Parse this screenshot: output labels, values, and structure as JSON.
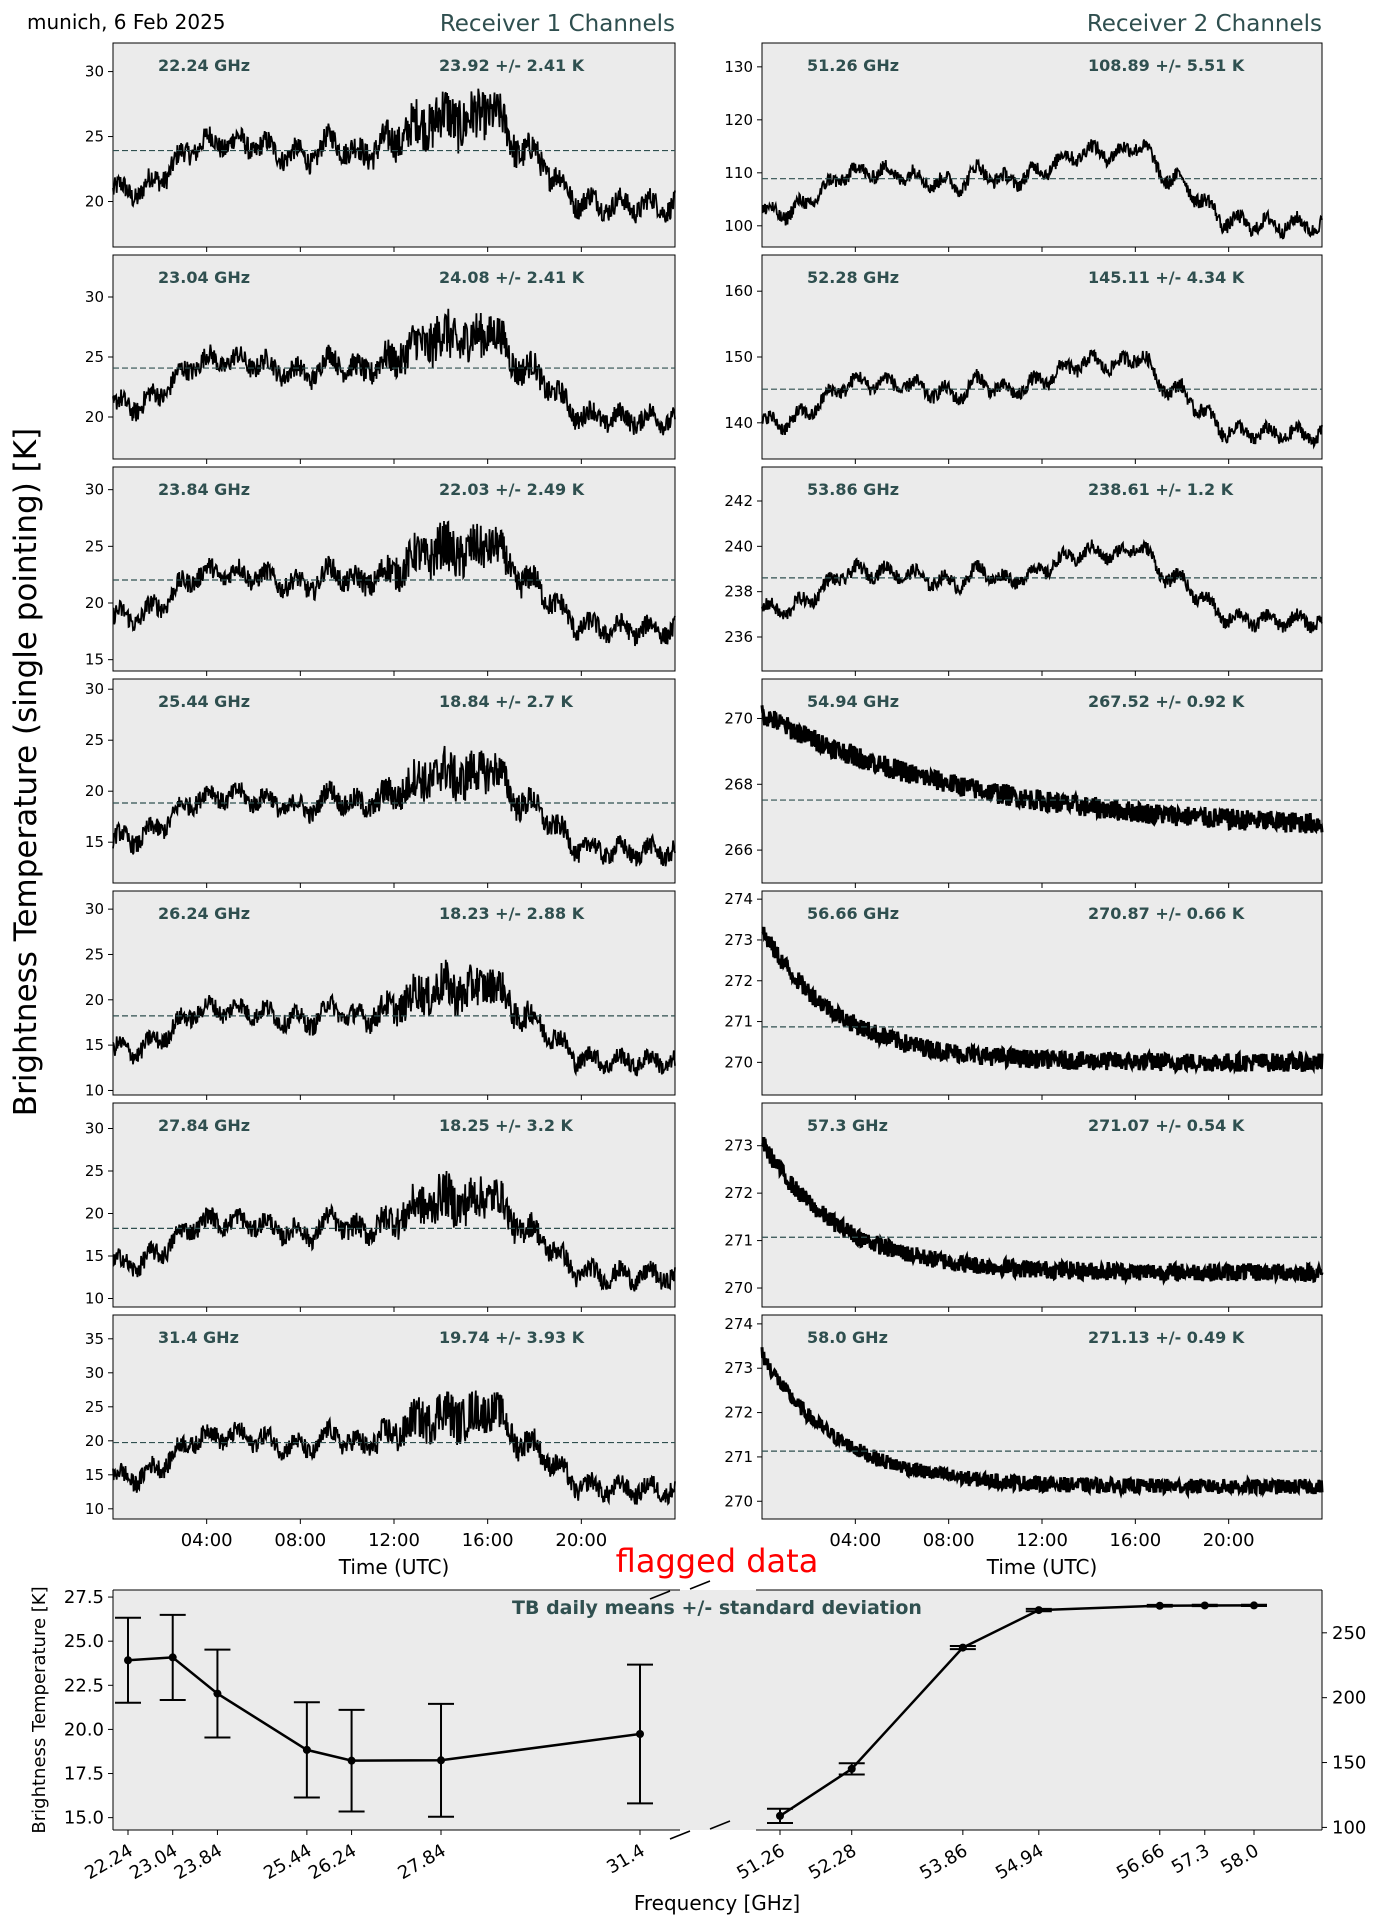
{
  "title": "munich, 6 Feb 2025",
  "column_titles": [
    "Receiver 1 Channels",
    "Receiver 2 Channels"
  ],
  "ylabel_main": "Brightness Temperature (single pointing) [K]",
  "colors": {
    "panel_bg": "#ebebeb",
    "series": "#000000",
    "annotation": "#2f4f4f",
    "flag": "#ff0000"
  },
  "chart_data": [
    {
      "type": "line",
      "receiver": 1,
      "xlabel": "Time (UTC)",
      "x_tick_labels": [
        "04:00",
        "08:00",
        "12:00",
        "16:00",
        "20:00"
      ],
      "xlim_hours": [
        0,
        24
      ],
      "panels": [
        {
          "freq_label": "22.24 GHz",
          "stat_label": "23.92 +/- 2.41 K",
          "mean": 23.92,
          "std": 2.41,
          "ylim": [
            16.5,
            32.2
          ],
          "yticks": [
            20,
            25,
            30
          ]
        },
        {
          "freq_label": "23.04 GHz",
          "stat_label": "24.08 +/- 2.41 K",
          "mean": 24.08,
          "std": 2.41,
          "ylim": [
            16.5,
            33.5
          ],
          "yticks": [
            20,
            25,
            30
          ]
        },
        {
          "freq_label": "23.84 GHz",
          "stat_label": "22.03 +/- 2.49 K",
          "mean": 22.03,
          "std": 2.49,
          "ylim": [
            14.0,
            32.0
          ],
          "yticks": [
            15,
            20,
            25,
            30
          ]
        },
        {
          "freq_label": "25.44 GHz",
          "stat_label": "18.84 +/- 2.7 K",
          "mean": 18.84,
          "std": 2.7,
          "ylim": [
            11.0,
            31.0
          ],
          "yticks": [
            15,
            20,
            25,
            30
          ]
        },
        {
          "freq_label": "26.24 GHz",
          "stat_label": "18.23 +/- 2.88 K",
          "mean": 18.23,
          "std": 2.88,
          "ylim": [
            9.5,
            32.0
          ],
          "yticks": [
            10,
            15,
            20,
            25,
            30
          ]
        },
        {
          "freq_label": "27.84 GHz",
          "stat_label": "18.25 +/- 3.2 K",
          "mean": 18.25,
          "std": 3.2,
          "ylim": [
            9.0,
            33.0
          ],
          "yticks": [
            10,
            15,
            20,
            25,
            30
          ]
        },
        {
          "freq_label": "31.4 GHz",
          "stat_label": "19.74 +/- 3.93 K",
          "mean": 19.74,
          "std": 3.93,
          "ylim": [
            8.5,
            38.5
          ],
          "yticks": [
            10,
            15,
            20,
            25,
            30,
            35
          ]
        }
      ]
    },
    {
      "type": "line",
      "receiver": 2,
      "xlabel": "Time (UTC)",
      "x_tick_labels": [
        "04:00",
        "08:00",
        "12:00",
        "16:00",
        "20:00"
      ],
      "xlim_hours": [
        0,
        24
      ],
      "panels": [
        {
          "freq_label": "51.26 GHz",
          "stat_label": "108.89 +/- 5.51 K",
          "mean": 108.89,
          "std": 5.51,
          "ylim": [
            96.0,
            134.5
          ],
          "yticks": [
            100,
            110,
            120,
            130
          ]
        },
        {
          "freq_label": "52.28 GHz",
          "stat_label": "145.11 +/- 4.34 K",
          "mean": 145.11,
          "std": 4.34,
          "ylim": [
            134.5,
            165.5
          ],
          "yticks": [
            140,
            150,
            160
          ]
        },
        {
          "freq_label": "53.86 GHz",
          "stat_label": "238.61 +/- 1.2 K",
          "mean": 238.61,
          "std": 1.2,
          "ylim": [
            234.5,
            243.5
          ],
          "yticks": [
            236,
            238,
            240,
            242
          ]
        },
        {
          "freq_label": "54.94 GHz",
          "stat_label": "267.52 +/- 0.92 K",
          "mean": 267.52,
          "std": 0.92,
          "ylim": [
            265.0,
            271.2
          ],
          "yticks": [
            266,
            268,
            270
          ]
        },
        {
          "freq_label": "56.66 GHz",
          "stat_label": "270.87 +/- 0.66 K",
          "mean": 270.87,
          "std": 0.66,
          "ylim": [
            269.2,
            274.2
          ],
          "yticks": [
            270,
            271,
            272,
            273,
            274
          ]
        },
        {
          "freq_label": "57.3 GHz",
          "stat_label": "271.07 +/- 0.54 K",
          "mean": 271.07,
          "std": 0.54,
          "ylim": [
            269.6,
            273.9
          ],
          "yticks": [
            270,
            271,
            272,
            273
          ]
        },
        {
          "freq_label": "58.0 GHz",
          "stat_label": "271.13 +/- 0.49 K",
          "mean": 271.13,
          "std": 0.49,
          "ylim": [
            269.6,
            274.2
          ],
          "yticks": [
            270,
            271,
            272,
            273,
            274
          ]
        }
      ]
    },
    {
      "type": "line",
      "title": "TB daily means +/- standard deviation",
      "xlabel": "Frequency [GHz]",
      "ylabel": "Brightness Temperature [K]",
      "flag_label": "flagged data",
      "left_axis": {
        "ylim": [
          14.3,
          27.9
        ],
        "yticks": [
          15.0,
          17.5,
          20.0,
          22.5,
          25.0,
          27.5
        ],
        "ytick_labels": [
          "15.0",
          "17.5",
          "20.0",
          "22.5",
          "25.0",
          "27.5"
        ]
      },
      "right_axis": {
        "ylim": [
          98,
          283
        ],
        "yticks": [
          100,
          150,
          200,
          250
        ],
        "ytick_labels": [
          "100",
          "150",
          "200",
          "250"
        ]
      },
      "series": [
        {
          "x_labels": [
            "22.24",
            "23.04",
            "23.84",
            "25.44",
            "26.24",
            "27.84",
            "31.4"
          ],
          "x": [
            22.24,
            23.04,
            23.84,
            25.44,
            26.24,
            27.84,
            31.4
          ],
          "y": [
            23.92,
            24.08,
            22.03,
            18.84,
            18.23,
            18.25,
            19.74
          ],
          "err": [
            2.41,
            2.41,
            2.49,
            2.7,
            2.88,
            3.2,
            3.93
          ]
        },
        {
          "x_labels": [
            "51.26",
            "52.28",
            "53.86",
            "54.94",
            "56.66",
            "57.3",
            "58.0"
          ],
          "x": [
            51.26,
            52.28,
            53.86,
            54.94,
            56.66,
            57.3,
            58.0
          ],
          "y": [
            108.89,
            145.11,
            238.61,
            267.52,
            270.87,
            271.07,
            271.13
          ],
          "err": [
            5.51,
            4.34,
            1.2,
            0.92,
            0.66,
            0.54,
            0.49
          ]
        }
      ]
    }
  ]
}
